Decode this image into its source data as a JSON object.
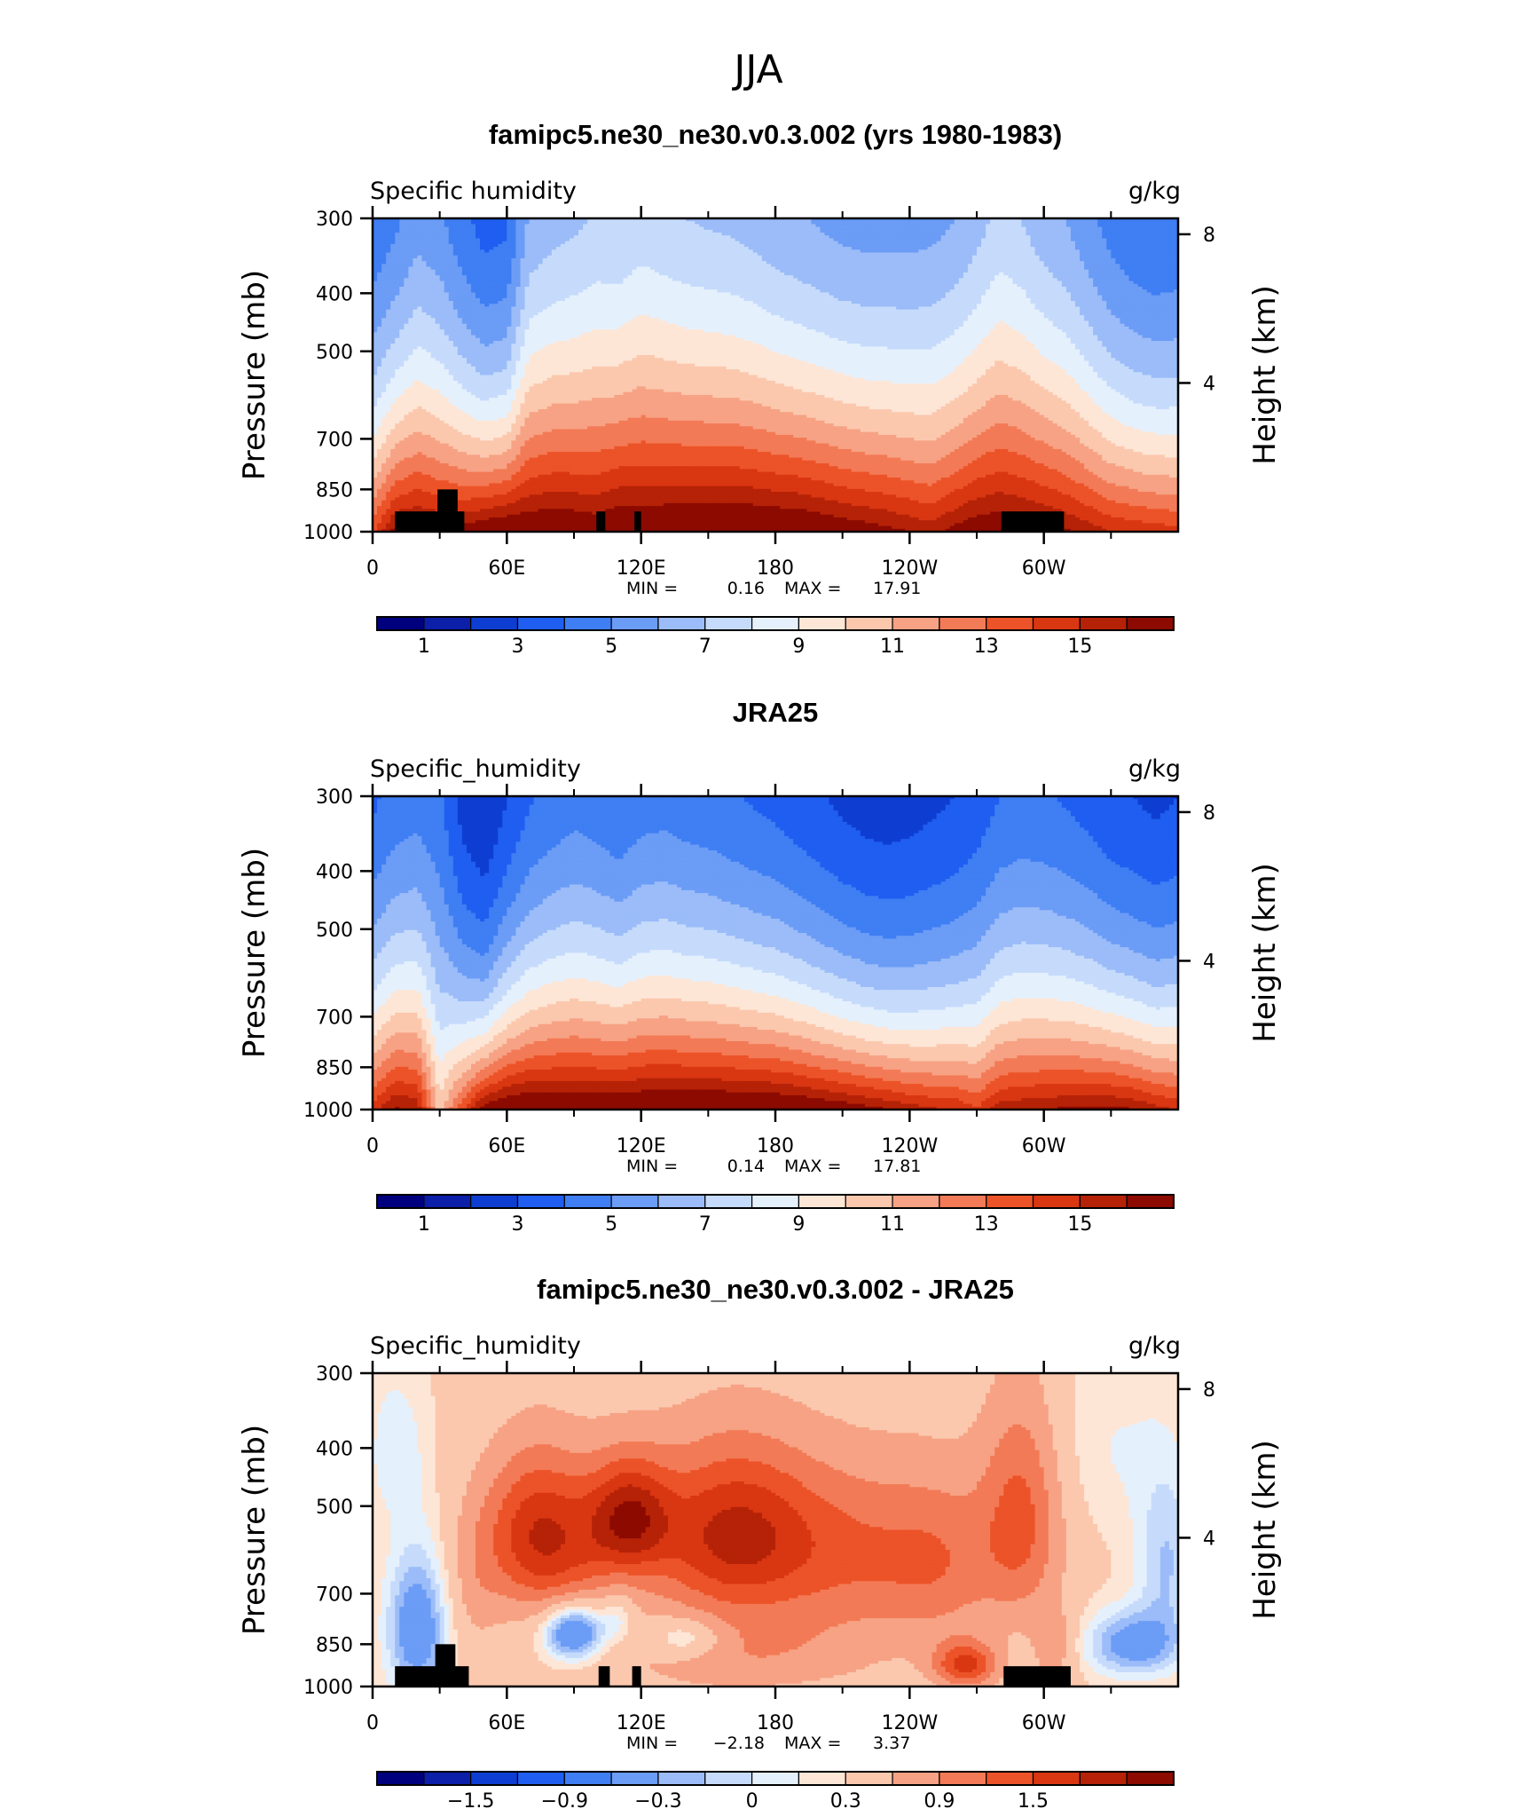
{
  "title": "JJA",
  "palette": [
    "#00007f",
    "#0b1fa8",
    "#0e3ed1",
    "#1f5ef0",
    "#3f7ef3",
    "#6b9cf6",
    "#9bbcf8",
    "#c6dbfb",
    "#e5f0fd",
    "#fde6d6",
    "#fbc8ae",
    "#f7a284",
    "#f37a56",
    "#ec5328",
    "#d93612",
    "#b52207",
    "#8c0a00"
  ],
  "chart_data": [
    {
      "type": "heatmap",
      "title": "famipc5.ne30_ne30.v0.3.002 (yrs 1980-1983)",
      "left_label": "Specific humidity",
      "units": "g/kg",
      "ylabel": "Pressure (mb)",
      "ylabel_right": "Height (km)",
      "yticks": [
        "300",
        "400",
        "500",
        "700",
        "850",
        "1000"
      ],
      "yticks_right": [
        "8",
        "4"
      ],
      "xticks": [
        "0",
        "60E",
        "120E",
        "180",
        "120W",
        "60W"
      ],
      "ylim": [
        1000,
        300
      ],
      "xlim": [
        0,
        360
      ],
      "stats": {
        "min_label": "MIN =",
        "min": "0.16",
        "max_label": "MAX =",
        "max": "17.91"
      },
      "levels": [
        1,
        2,
        3,
        4,
        5,
        6,
        7,
        8,
        9,
        10,
        11,
        12,
        13,
        14,
        15,
        16
      ],
      "colorbar_labels": [
        "1",
        "3",
        "5",
        "7",
        "9",
        "11",
        "13",
        "15"
      ],
      "colorbar_label_levels": [
        1,
        3,
        5,
        7,
        9,
        11,
        13,
        15
      ],
      "lon": [
        0,
        10,
        20,
        30,
        40,
        50,
        60,
        70,
        80,
        90,
        100,
        110,
        120,
        130,
        140,
        150,
        160,
        170,
        180,
        190,
        200,
        210,
        220,
        230,
        240,
        250,
        260,
        270,
        280,
        290,
        300,
        310,
        320,
        330,
        340,
        350,
        360
      ],
      "top_pressure_profile": [
        4.2,
        4.8,
        5.6,
        5.2,
        4.3,
        3.6,
        3.8,
        6.2,
        6.6,
        6.8,
        7.1,
        7.0,
        7.4,
        7.2,
        7.0,
        6.9,
        6.8,
        6.6,
        6.3,
        6.1,
        5.9,
        5.7,
        5.6,
        5.6,
        5.6,
        5.7,
        6.0,
        6.6,
        7.3,
        7.0,
        6.4,
        6.0,
        5.3,
        4.6,
        4.2,
        4.0,
        4.1
      ],
      "surface_profile": [
        13.8,
        16.5,
        16.8,
        16.4,
        16.6,
        17.2,
        17.6,
        17.4,
        17.5,
        17.3,
        17.0,
        17.6,
        17.5,
        17.6,
        17.7,
        17.8,
        17.9,
        17.8,
        17.7,
        17.6,
        17.3,
        17.0,
        16.7,
        16.4,
        16.0,
        15.6,
        16.4,
        17.0,
        17.1,
        16.9,
        16.6,
        16.2,
        15.6,
        15.0,
        14.8,
        14.6,
        14.4
      ],
      "terrain": [
        {
          "lon_from": 10,
          "lon_to": 41,
          "p_top": 925
        },
        {
          "lon_from": 29,
          "lon_to": 38,
          "p_top": 850
        },
        {
          "lon_from": 100,
          "lon_to": 104,
          "p_top": 925
        },
        {
          "lon_from": 117,
          "lon_to": 120,
          "p_top": 925
        },
        {
          "lon_from": 281,
          "lon_to": 309,
          "p_top": 925
        }
      ]
    },
    {
      "type": "heatmap",
      "title": "JRA25",
      "left_label": "Specific_humidity",
      "units": "g/kg",
      "ylabel": "Pressure (mb)",
      "ylabel_right": "Height (km)",
      "yticks": [
        "300",
        "400",
        "500",
        "700",
        "850",
        "1000"
      ],
      "yticks_right": [
        "8",
        "4"
      ],
      "xticks": [
        "0",
        "60E",
        "120E",
        "180",
        "120W",
        "60W"
      ],
      "ylim": [
        1000,
        300
      ],
      "xlim": [
        0,
        360
      ],
      "stats": {
        "min_label": "MIN =",
        "min": "0.14",
        "max_label": "MAX =",
        "max": "17.81"
      },
      "levels": [
        1,
        2,
        3,
        4,
        5,
        6,
        7,
        8,
        9,
        10,
        11,
        12,
        13,
        14,
        15,
        16
      ],
      "colorbar_labels": [
        "1",
        "3",
        "5",
        "7",
        "9",
        "11",
        "13",
        "15"
      ],
      "colorbar_label_levels": [
        1,
        3,
        5,
        7,
        9,
        11,
        13,
        15
      ],
      "lon": [
        0,
        10,
        20,
        30,
        40,
        50,
        60,
        70,
        80,
        90,
        100,
        110,
        120,
        130,
        140,
        150,
        160,
        170,
        180,
        190,
        200,
        210,
        220,
        230,
        240,
        250,
        260,
        270,
        280,
        290,
        300,
        310,
        320,
        330,
        340,
        350,
        360
      ],
      "top_pressure_profile": [
        3.8,
        4.4,
        4.6,
        4.2,
        2.6,
        2.0,
        3.0,
        3.9,
        4.3,
        4.6,
        4.4,
        4.1,
        4.5,
        4.6,
        4.4,
        4.3,
        4.1,
        3.9,
        3.7,
        3.4,
        3.1,
        2.8,
        2.6,
        2.5,
        2.6,
        2.8,
        3.0,
        3.4,
        4.0,
        4.2,
        4.1,
        3.9,
        3.6,
        3.2,
        3.0,
        2.8,
        3.0
      ],
      "surface_profile": [
        14.6,
        16.2,
        15.8,
        10.5,
        13.8,
        16.8,
        17.6,
        17.7,
        17.6,
        17.5,
        17.5,
        17.6,
        17.7,
        17.8,
        17.8,
        17.8,
        17.8,
        17.7,
        17.7,
        17.5,
        17.2,
        16.9,
        16.5,
        16.1,
        15.6,
        15.2,
        15.0,
        14.2,
        15.6,
        15.8,
        16.0,
        16.2,
        16.3,
        16.4,
        16.1,
        15.4,
        15.0
      ],
      "terrain": []
    },
    {
      "type": "heatmap",
      "title": "famipc5.ne30_ne30.v0.3.002 - JRA25",
      "left_label": "Specific_humidity",
      "units": "g/kg",
      "ylabel": "Pressure (mb)",
      "ylabel_right": "Height (km)",
      "yticks": [
        "300",
        "400",
        "500",
        "700",
        "850",
        "1000"
      ],
      "yticks_right": [
        "8",
        "4"
      ],
      "xticks": [
        "0",
        "60E",
        "120E",
        "180",
        "120W",
        "60W"
      ],
      "ylim": [
        1000,
        300
      ],
      "xlim": [
        0,
        360
      ],
      "stats": {
        "min_label": "MIN =",
        "min": "−2.18",
        "max_label": "MAX =",
        "max": "3.37"
      },
      "levels": [
        -1.8,
        -1.5,
        -1.2,
        -0.9,
        -0.6,
        -0.3,
        -0.15,
        0,
        0.15,
        0.3,
        0.6,
        0.9,
        1.2,
        1.5,
        1.8,
        2.1
      ],
      "colorbar_labels": [
        "−1.5",
        "−0.9",
        "−0.3",
        "0",
        "0.3",
        "0.9",
        "1.5"
      ],
      "colorbar_label_levels": [
        -1.5,
        -0.9,
        -0.3,
        0,
        0.3,
        0.9,
        1.5
      ],
      "blobs": [
        {
          "lon": 20,
          "p": 800,
          "a": -0.9,
          "dl": 14,
          "dp": 230
        },
        {
          "lon": 10,
          "p": 400,
          "a": -0.3,
          "dl": 14,
          "dp": 120
        },
        {
          "lon": 45,
          "p": 700,
          "a": 0.25,
          "dl": 12,
          "dp": 200
        },
        {
          "lon": 80,
          "p": 580,
          "a": 1.2,
          "dl": 30,
          "dp": 170
        },
        {
          "lon": 70,
          "p": 520,
          "a": 0.4,
          "dl": 20,
          "dp": 150
        },
        {
          "lon": 115,
          "p": 520,
          "a": 1.3,
          "dl": 18,
          "dp": 110
        },
        {
          "lon": 160,
          "p": 560,
          "a": 1.5,
          "dl": 38,
          "dp": 180
        },
        {
          "lon": 215,
          "p": 600,
          "a": 0.7,
          "dl": 40,
          "dp": 200
        },
        {
          "lon": 255,
          "p": 620,
          "a": 0.6,
          "dl": 28,
          "dp": 200
        },
        {
          "lon": 290,
          "p": 520,
          "a": 0.9,
          "dl": 18,
          "dp": 220
        },
        {
          "lon": 165,
          "p": 880,
          "a": 0.5,
          "dl": 60,
          "dp": 140
        },
        {
          "lon": 265,
          "p": 920,
          "a": 1.2,
          "dl": 14,
          "dp": 80
        },
        {
          "lon": 90,
          "p": 810,
          "a": -1.2,
          "dl": 14,
          "dp": 90
        },
        {
          "lon": 110,
          "p": 760,
          "a": -0.4,
          "dl": 8,
          "dp": 80
        },
        {
          "lon": 140,
          "p": 830,
          "a": -0.6,
          "dl": 18,
          "dp": 70
        },
        {
          "lon": 305,
          "p": 860,
          "a": 0.4,
          "dl": 10,
          "dp": 140
        },
        {
          "lon": 340,
          "p": 850,
          "a": -0.8,
          "dl": 22,
          "dp": 110
        },
        {
          "lon": 355,
          "p": 620,
          "a": -0.5,
          "dl": 14,
          "dp": 200
        },
        {
          "lon": 330,
          "p": 400,
          "a": -0.2,
          "dl": 30,
          "dp": 150
        }
      ],
      "terrain": [
        {
          "lon_from": 10,
          "lon_to": 43,
          "p_top": 925
        },
        {
          "lon_from": 28,
          "lon_to": 37,
          "p_top": 850
        },
        {
          "lon_from": 101,
          "lon_to": 106,
          "p_top": 925
        },
        {
          "lon_from": 116,
          "lon_to": 120,
          "p_top": 925
        },
        {
          "lon_from": 282,
          "lon_to": 312,
          "p_top": 925
        }
      ]
    }
  ]
}
